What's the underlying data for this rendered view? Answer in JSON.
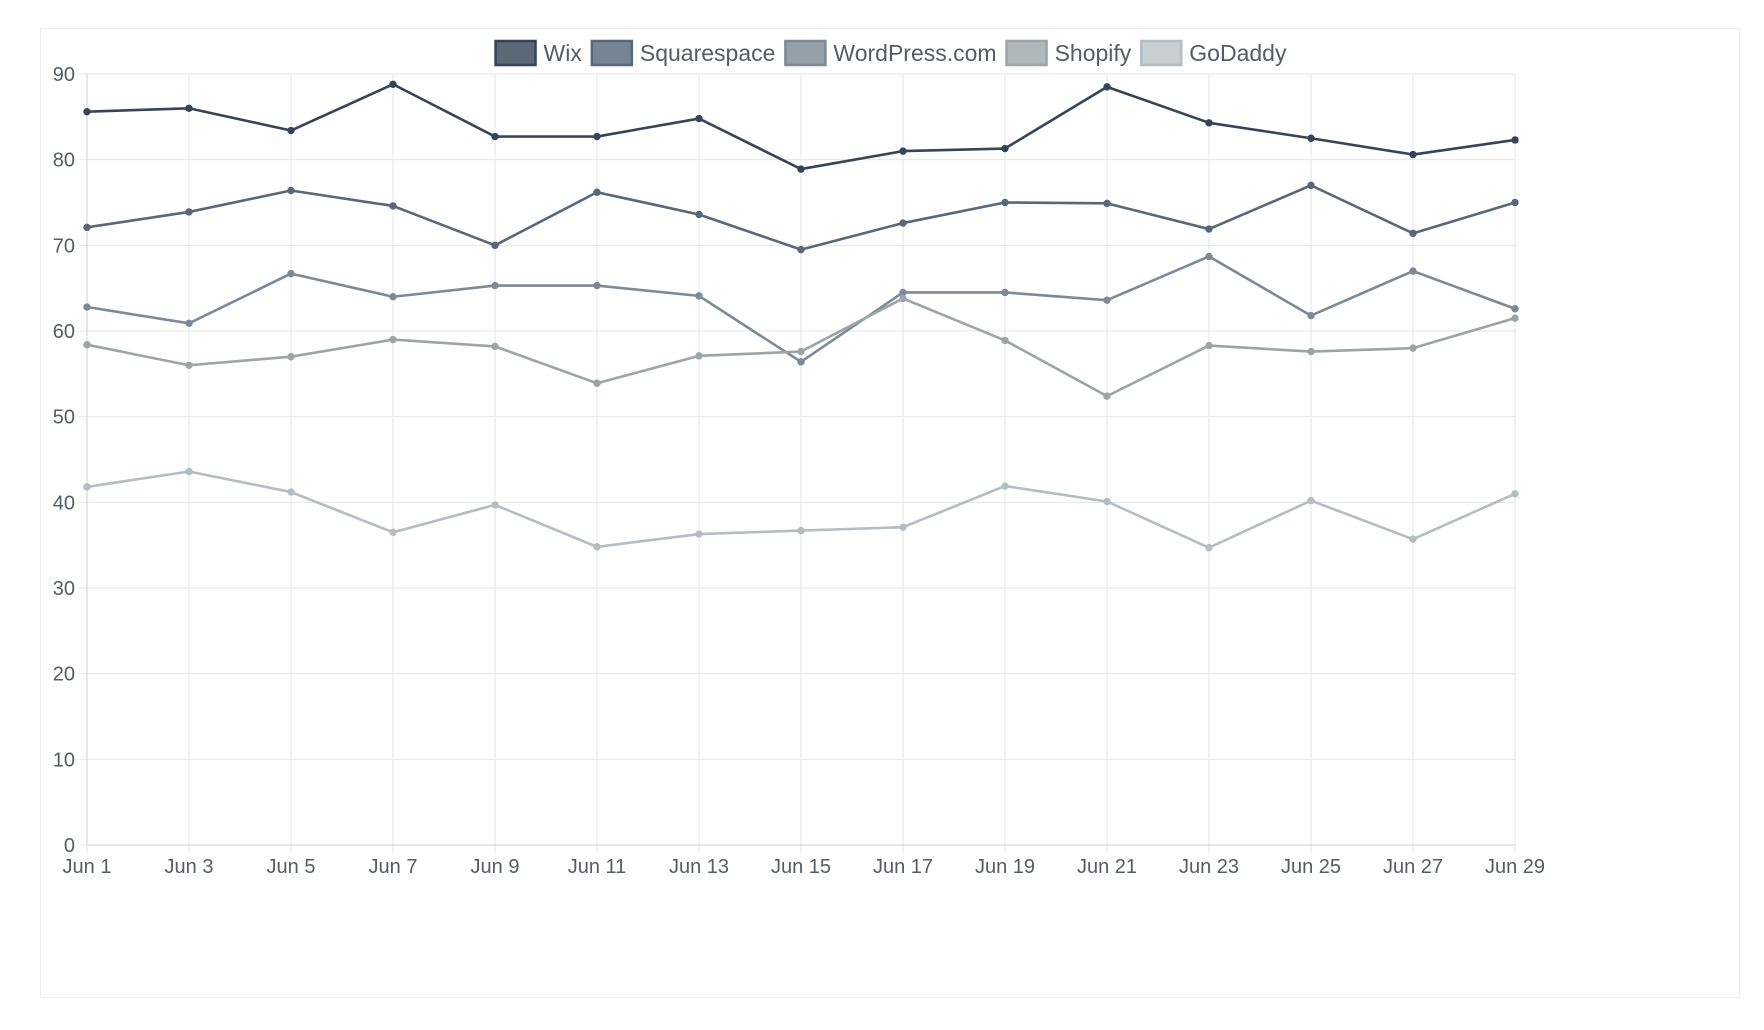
{
  "chart_data": {
    "type": "line",
    "title": "",
    "xlabel": "",
    "ylabel": "",
    "ylim": [
      0,
      90
    ],
    "yticks": [
      0,
      10,
      20,
      30,
      40,
      50,
      60,
      70,
      80,
      90
    ],
    "grid": true,
    "legend_position": "top-center",
    "categories": [
      "Jun 1",
      "Jun 3",
      "Jun 5",
      "Jun 7",
      "Jun 9",
      "Jun 11",
      "Jun 13",
      "Jun 15",
      "Jun 17",
      "Jun 19",
      "Jun 21",
      "Jun 23",
      "Jun 25",
      "Jun 27",
      "Jun 29"
    ],
    "series": [
      {
        "name": "Wix",
        "color": "#34455a",
        "legend_fill": "#5a6878",
        "values": [
          85.6,
          86.0,
          83.4,
          88.8,
          82.7,
          82.7,
          84.8,
          78.9,
          81.0,
          81.3,
          88.5,
          84.3,
          82.5,
          80.6,
          82.3
        ]
      },
      {
        "name": "Squarespace",
        "color": "#56687a",
        "legend_fill": "#758593",
        "values": [
          72.1,
          73.9,
          76.4,
          74.6,
          70.0,
          76.2,
          73.6,
          69.5,
          72.6,
          75.0,
          74.9,
          71.9,
          77.0,
          71.4,
          75.0
        ]
      },
      {
        "name": "WordPress.com",
        "color": "#7b8a96",
        "legend_fill": "#95a1aa",
        "values": [
          62.8,
          60.9,
          66.7,
          64.0,
          65.3,
          65.3,
          64.1,
          56.4,
          64.5,
          64.5,
          63.6,
          68.7,
          61.8,
          67.0,
          62.6
        ]
      },
      {
        "name": "Shopify",
        "color": "#9ba5a5",
        "legend_fill": "#b0b9b9",
        "values": [
          58.4,
          56.0,
          57.0,
          59.0,
          58.2,
          53.9,
          57.1,
          57.6,
          63.8,
          58.9,
          52.4,
          58.3,
          57.6,
          58.0,
          61.5
        ]
      },
      {
        "name": "GoDaddy",
        "color": "#b4bdc1",
        "legend_fill": "#c7cfd2",
        "values": [
          41.8,
          43.6,
          41.2,
          36.5,
          39.7,
          34.8,
          36.3,
          36.7,
          37.1,
          41.9,
          40.1,
          34.7,
          40.2,
          35.7,
          41.0
        ]
      }
    ]
  }
}
